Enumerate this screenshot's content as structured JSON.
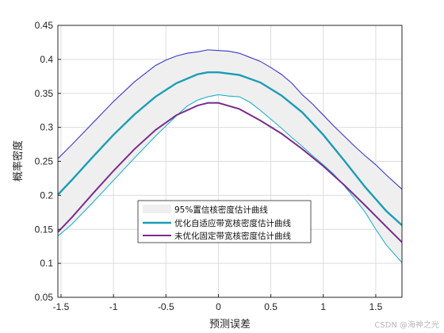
{
  "chart_data": {
    "type": "line",
    "xlabel": "预测误差",
    "ylabel": "概率密度",
    "xlim": [
      -1.53,
      1.75
    ],
    "ylim": [
      0.05,
      0.45
    ],
    "xticks": [
      -1.5,
      -1,
      -0.5,
      0,
      0.5,
      1,
      1.5
    ],
    "xtick_labels": [
      "-1.5",
      "-1",
      "-0.5",
      "0",
      "0.5",
      "1",
      "1.5"
    ],
    "yticks": [
      0.05,
      0.1,
      0.15,
      0.2,
      0.25,
      0.3,
      0.35,
      0.4,
      0.45
    ],
    "ytick_labels": [
      "0.05",
      "0.1",
      "0.15",
      "0.2",
      "0.25",
      "0.3",
      "0.35",
      "0.4",
      "0.45"
    ],
    "grid": true,
    "legend_position": "lower-center",
    "band": {
      "name": "95%置信核密度估计曲线",
      "fill_color": "#efefef",
      "upper": [
        [
          -1.53,
          0.254
        ],
        [
          -1.4,
          0.274
        ],
        [
          -1.2,
          0.306
        ],
        [
          -1.0,
          0.338
        ],
        [
          -0.8,
          0.367
        ],
        [
          -0.6,
          0.391
        ],
        [
          -0.5,
          0.399
        ],
        [
          -0.4,
          0.405
        ],
        [
          -0.3,
          0.409
        ],
        [
          -0.2,
          0.411
        ],
        [
          -0.1,
          0.414
        ],
        [
          0.0,
          0.413
        ],
        [
          0.1,
          0.412
        ],
        [
          0.2,
          0.409
        ],
        [
          0.3,
          0.403
        ],
        [
          0.4,
          0.397
        ],
        [
          0.5,
          0.388
        ],
        [
          0.6,
          0.378
        ],
        [
          0.7,
          0.365
        ],
        [
          0.8,
          0.348
        ],
        [
          0.9,
          0.334
        ],
        [
          1.0,
          0.318
        ],
        [
          1.1,
          0.302
        ],
        [
          1.2,
          0.287
        ],
        [
          1.3,
          0.272
        ],
        [
          1.4,
          0.258
        ],
        [
          1.5,
          0.245
        ],
        [
          1.6,
          0.23
        ],
        [
          1.75,
          0.209
        ]
      ],
      "lower": [
        [
          -1.53,
          0.14
        ],
        [
          -1.4,
          0.157
        ],
        [
          -1.2,
          0.189
        ],
        [
          -1.0,
          0.222
        ],
        [
          -0.8,
          0.255
        ],
        [
          -0.6,
          0.287
        ],
        [
          -0.5,
          0.302
        ],
        [
          -0.4,
          0.317
        ],
        [
          -0.3,
          0.331
        ],
        [
          -0.2,
          0.34
        ],
        [
          -0.1,
          0.345
        ],
        [
          0.0,
          0.348
        ],
        [
          0.1,
          0.346
        ],
        [
          0.2,
          0.345
        ],
        [
          0.3,
          0.337
        ],
        [
          0.4,
          0.325
        ],
        [
          0.5,
          0.312
        ],
        [
          0.6,
          0.299
        ],
        [
          0.7,
          0.285
        ],
        [
          0.8,
          0.272
        ],
        [
          0.9,
          0.258
        ],
        [
          1.0,
          0.245
        ],
        [
          1.1,
          0.231
        ],
        [
          1.2,
          0.214
        ],
        [
          1.3,
          0.195
        ],
        [
          1.4,
          0.175
        ],
        [
          1.5,
          0.15
        ],
        [
          1.6,
          0.127
        ],
        [
          1.75,
          0.101
        ]
      ]
    },
    "series": [
      {
        "name": "优化自适应带宽核密度估计曲线",
        "color": "#1c9db5",
        "x": [
          -1.53,
          -1.4,
          -1.2,
          -1.0,
          -0.8,
          -0.6,
          -0.4,
          -0.2,
          -0.1,
          0.0,
          0.2,
          0.4,
          0.6,
          0.8,
          1.0,
          1.2,
          1.4,
          1.6,
          1.75
        ],
        "y": [
          0.201,
          0.222,
          0.256,
          0.289,
          0.319,
          0.345,
          0.365,
          0.378,
          0.381,
          0.381,
          0.377,
          0.366,
          0.347,
          0.322,
          0.289,
          0.251,
          0.212,
          0.177,
          0.156
        ]
      },
      {
        "name": "未优化固定带宽核密度估计曲线",
        "color": "#7b2d8b",
        "x": [
          -1.53,
          -1.4,
          -1.2,
          -1.0,
          -0.8,
          -0.6,
          -0.4,
          -0.2,
          -0.1,
          0.0,
          0.2,
          0.4,
          0.6,
          0.8,
          1.0,
          1.2,
          1.4,
          1.6,
          1.75
        ],
        "y": [
          0.146,
          0.167,
          0.202,
          0.236,
          0.268,
          0.296,
          0.318,
          0.332,
          0.336,
          0.336,
          0.327,
          0.31,
          0.291,
          0.268,
          0.243,
          0.215,
          0.185,
          0.154,
          0.131
        ]
      }
    ]
  },
  "watermark": "CSDN @海神之光"
}
